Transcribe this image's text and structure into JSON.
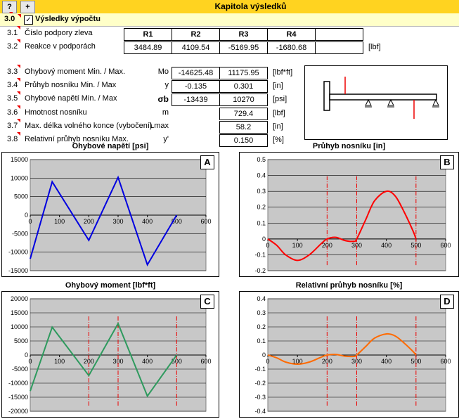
{
  "topbar": {
    "help_label": "?",
    "add_label": "+",
    "title": "Kapitola výsledků"
  },
  "section": {
    "number": "3.0",
    "title": "Výsledky výpočtu"
  },
  "support_table": {
    "rows": [
      {
        "num": "3.1",
        "label": "Číslo podpory zleva",
        "cells": [
          "R1",
          "R2",
          "R3",
          "R4",
          ""
        ]
      },
      {
        "num": "3.2",
        "label": "Reakce v podporách",
        "cells": [
          "3484.89",
          "4109.54",
          "-5169.95",
          "-1680.68",
          ""
        ],
        "unit": "[lbf]"
      }
    ]
  },
  "results": [
    {
      "num": "3.3",
      "label": "Ohybový moment Min. / Max.",
      "symbol": "Mo",
      "min": "-14625.48",
      "max": "11175.95",
      "unit": "[lbf*ft]"
    },
    {
      "num": "3.4",
      "label": "Průhyb nosníku Min. / Max",
      "symbol": "y",
      "min": "-0.135",
      "max": "0.301",
      "unit": "[in]"
    },
    {
      "num": "3.5",
      "label": "Ohybové napětí Min. / Max",
      "symbol": "σb",
      "min": "-13439",
      "max": "10270",
      "unit": "[psi]"
    },
    {
      "num": "3.6",
      "label": "Hmotnost nosníku",
      "symbol": "m",
      "value": "729.4",
      "unit": "[lbf]"
    },
    {
      "num": "3.7",
      "label": "Max. délka volného konce (vybočení)",
      "symbol": "Lmax",
      "value": "58.2",
      "unit": "[in]"
    },
    {
      "num": "3.8",
      "label": "Relativní průhyb nosníku Max.",
      "symbol": "y'",
      "value": "0.150",
      "unit": "[%]"
    }
  ],
  "chart_data": [
    {
      "id": "A",
      "type": "line",
      "title": "Ohybové napětí [psi]",
      "xlim": [
        0,
        600
      ],
      "ylim": [
        -15000,
        15000
      ],
      "yticks": [
        -15000,
        -10000,
        -5000,
        0,
        5000,
        10000,
        15000
      ],
      "xticks": [
        0,
        100,
        200,
        300,
        400,
        500,
        600
      ],
      "color": "#0000e0",
      "series": [
        {
          "x": [
            0,
            75,
            200,
            300,
            400,
            500
          ],
          "y": [
            -11800,
            9000,
            -6800,
            10200,
            -13400,
            0
          ]
        }
      ],
      "vlines": []
    },
    {
      "id": "B",
      "type": "line",
      "title": "Průhyb nosníku [in]",
      "xlim": [
        0,
        600
      ],
      "ylim": [
        -0.2,
        0.5
      ],
      "yticks": [
        -0.2,
        -0.1,
        0,
        0.1,
        0.2,
        0.3,
        0.4,
        0.5
      ],
      "xticks": [
        0,
        100,
        200,
        300,
        400,
        500,
        600
      ],
      "color": "#ff0000",
      "series": [
        {
          "x": [
            0,
            30,
            60,
            100,
            140,
            180,
            200,
            230,
            260,
            290,
            300,
            330,
            360,
            400,
            430,
            460,
            490,
            500
          ],
          "y": [
            0,
            -0.04,
            -0.1,
            -0.135,
            -0.1,
            -0.03,
            0,
            0.01,
            -0.01,
            -0.015,
            0,
            0.12,
            0.24,
            0.3,
            0.27,
            0.17,
            0.05,
            0
          ]
        }
      ],
      "vlines": [
        200,
        300,
        500
      ]
    },
    {
      "id": "C",
      "type": "line",
      "title": "Ohybový moment [lbf*ft]",
      "xlim": [
        0,
        600
      ],
      "ylim": [
        -20000,
        20000
      ],
      "yticks": [
        -20000,
        -15000,
        -10000,
        -5000,
        0,
        5000,
        10000,
        15000,
        20000
      ],
      "xticks": [
        0,
        100,
        200,
        300,
        400,
        500,
        600
      ],
      "color": "#2e9a5e",
      "series": [
        {
          "x": [
            0,
            75,
            200,
            300,
            400,
            500
          ],
          "y": [
            -12800,
            9900,
            -7300,
            11200,
            -14600,
            0
          ]
        }
      ],
      "vlines": [
        200,
        300,
        500
      ]
    },
    {
      "id": "D",
      "type": "line",
      "title": "Relativní průhyb nosníku [%]",
      "xlim": [
        0,
        600
      ],
      "ylim": [
        -0.4,
        0.4
      ],
      "yticks": [
        -0.4,
        -0.3,
        -0.2,
        -0.1,
        0,
        0.1,
        0.2,
        0.3,
        0.4
      ],
      "xticks": [
        0,
        100,
        200,
        300,
        400,
        500,
        600
      ],
      "color": "#ff6a00",
      "series": [
        {
          "x": [
            0,
            30,
            60,
            100,
            140,
            180,
            200,
            230,
            260,
            290,
            300,
            330,
            360,
            400,
            430,
            460,
            490,
            500
          ],
          "y": [
            0,
            -0.02,
            -0.05,
            -0.065,
            -0.05,
            -0.015,
            0,
            0.004,
            -0.008,
            -0.01,
            0,
            0.06,
            0.12,
            0.15,
            0.135,
            0.085,
            0.025,
            0
          ]
        }
      ],
      "vlines": [
        200,
        300,
        500
      ]
    }
  ]
}
